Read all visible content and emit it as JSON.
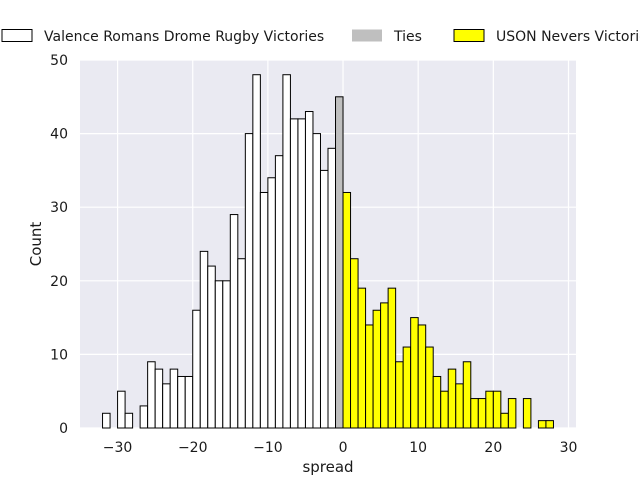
{
  "chart_data": {
    "type": "bar",
    "xlabel": "spread",
    "ylabel": "Count",
    "xlim": [
      -35,
      31
    ],
    "ylim": [
      0,
      50
    ],
    "xticks": [
      -30,
      -20,
      -10,
      0,
      10,
      20,
      30
    ],
    "yticks": [
      0,
      10,
      20,
      30,
      40,
      50
    ],
    "grid": true,
    "legend_placement": "top",
    "bin_width": 1,
    "series": [
      {
        "name": "Valence Romans Drome Rugby Victories",
        "fill": "#ffffff",
        "edge": "#000000",
        "bins": [
          {
            "x": -32,
            "count": 2
          },
          {
            "x": -31,
            "count": 0
          },
          {
            "x": -30,
            "count": 5
          },
          {
            "x": -29,
            "count": 2
          },
          {
            "x": -28,
            "count": 0
          },
          {
            "x": -27,
            "count": 3
          },
          {
            "x": -26,
            "count": 9
          },
          {
            "x": -25,
            "count": 8
          },
          {
            "x": -24,
            "count": 6
          },
          {
            "x": -23,
            "count": 8
          },
          {
            "x": -22,
            "count": 7
          },
          {
            "x": -21,
            "count": 7
          },
          {
            "x": -20,
            "count": 16
          },
          {
            "x": -19,
            "count": 24
          },
          {
            "x": -18,
            "count": 22
          },
          {
            "x": -17,
            "count": 20
          },
          {
            "x": -16,
            "count": 20
          },
          {
            "x": -15,
            "count": 29
          },
          {
            "x": -14,
            "count": 23
          },
          {
            "x": -13,
            "count": 40
          },
          {
            "x": -12,
            "count": 48
          },
          {
            "x": -11,
            "count": 32
          },
          {
            "x": -10,
            "count": 34
          },
          {
            "x": -9,
            "count": 37
          },
          {
            "x": -8,
            "count": 48
          },
          {
            "x": -7,
            "count": 42
          },
          {
            "x": -6,
            "count": 42
          },
          {
            "x": -5,
            "count": 43
          },
          {
            "x": -4,
            "count": 40
          },
          {
            "x": -3,
            "count": 35
          },
          {
            "x": -2,
            "count": 38
          }
        ]
      },
      {
        "name": "Ties",
        "fill": "#bfbfbf",
        "edge": "#000000",
        "bins": [
          {
            "x": -1,
            "count": 45
          }
        ]
      },
      {
        "name": "USON Nevers Victories",
        "fill": "#ffff00",
        "edge": "#000000",
        "bins": [
          {
            "x": 0,
            "count": 32
          },
          {
            "x": 1,
            "count": 23
          },
          {
            "x": 2,
            "count": 19
          },
          {
            "x": 3,
            "count": 14
          },
          {
            "x": 4,
            "count": 16
          },
          {
            "x": 5,
            "count": 17
          },
          {
            "x": 6,
            "count": 19
          },
          {
            "x": 7,
            "count": 9
          },
          {
            "x": 8,
            "count": 11
          },
          {
            "x": 9,
            "count": 15
          },
          {
            "x": 10,
            "count": 14
          },
          {
            "x": 11,
            "count": 11
          },
          {
            "x": 12,
            "count": 7
          },
          {
            "x": 13,
            "count": 5
          },
          {
            "x": 14,
            "count": 8
          },
          {
            "x": 15,
            "count": 6
          },
          {
            "x": 16,
            "count": 9
          },
          {
            "x": 17,
            "count": 4
          },
          {
            "x": 18,
            "count": 4
          },
          {
            "x": 19,
            "count": 5
          },
          {
            "x": 20,
            "count": 5
          },
          {
            "x": 21,
            "count": 2
          },
          {
            "x": 22,
            "count": 4
          },
          {
            "x": 23,
            "count": 0
          },
          {
            "x": 24,
            "count": 4
          },
          {
            "x": 25,
            "count": 0
          },
          {
            "x": 26,
            "count": 1
          },
          {
            "x": 27,
            "count": 1
          }
        ]
      }
    ]
  },
  "colors": {
    "plot_background": "#eaeaf2",
    "grid": "#ffffff"
  }
}
